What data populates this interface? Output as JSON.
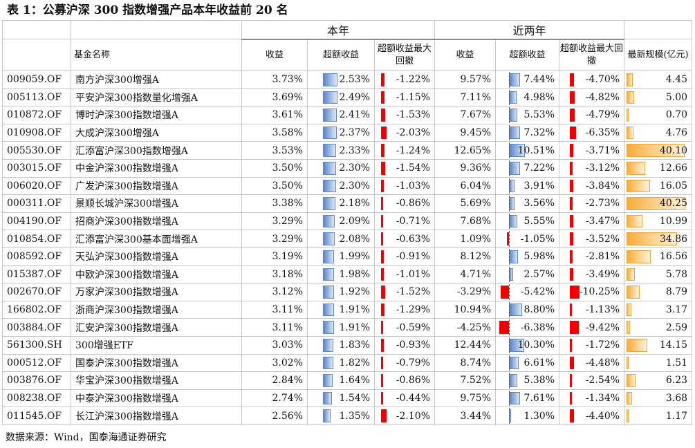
{
  "title": "表 1：公募沪深 300 指数增强产品本年收益前 20 名",
  "source": "数据来源：Wind，国泰海通证券研究",
  "group_headers": {
    "this_year": "本年",
    "two_years": "近两年"
  },
  "columns": {
    "fund_name": "基金名称",
    "ret": "收益",
    "excess": "超额收益",
    "mdd": "超额收益最大回撤",
    "ret2": "收益",
    "excess2": "超额收益",
    "mdd2": "超额收益最大回撤",
    "scale": "最新规模(亿元)"
  },
  "colors": {
    "blue": "#5b86c8",
    "red": "#f00000",
    "orange": "#f6ad3b",
    "border": "#c4c4c4"
  },
  "rows": [
    {
      "code": "009059.OF",
      "name": "南方沪深300增强A",
      "ret": "3.73%",
      "excess": "2.53%",
      "mdd": "-1.22%",
      "ret2": "9.57%",
      "excess2": "7.44%",
      "mdd2": "-4.70%",
      "scale": "4.45"
    },
    {
      "code": "005113.OF",
      "name": "平安沪深300指数量化增强A",
      "ret": "3.69%",
      "excess": "2.49%",
      "mdd": "-1.15%",
      "ret2": "7.11%",
      "excess2": "4.98%",
      "mdd2": "-4.82%",
      "scale": "5.00"
    },
    {
      "code": "010872.OF",
      "name": "博时沪深300指数增强A",
      "ret": "3.61%",
      "excess": "2.41%",
      "mdd": "-1.53%",
      "ret2": "7.67%",
      "excess2": "5.53%",
      "mdd2": "-4.79%",
      "scale": "0.70"
    },
    {
      "code": "010908.OF",
      "name": "大成沪深300增强A",
      "ret": "3.58%",
      "excess": "2.37%",
      "mdd": "-2.03%",
      "ret2": "9.45%",
      "excess2": "7.32%",
      "mdd2": "-6.35%",
      "scale": "4.76"
    },
    {
      "code": "005530.OF",
      "name": "汇添富沪深300指数增强A",
      "ret": "3.53%",
      "excess": "2.33%",
      "mdd": "-1.24%",
      "ret2": "12.65%",
      "excess2": "10.51%",
      "mdd2": "-3.71%",
      "scale": "40.10"
    },
    {
      "code": "003015.OF",
      "name": "中金沪深300指数增强A",
      "ret": "3.50%",
      "excess": "2.30%",
      "mdd": "-1.54%",
      "ret2": "9.36%",
      "excess2": "7.22%",
      "mdd2": "-3.12%",
      "scale": "12.66"
    },
    {
      "code": "006020.OF",
      "name": "广发沪深300指数增强A",
      "ret": "3.50%",
      "excess": "2.30%",
      "mdd": "-1.03%",
      "ret2": "6.04%",
      "excess2": "3.91%",
      "mdd2": "-3.84%",
      "scale": "16.05"
    },
    {
      "code": "000311.OF",
      "name": "景顺长城沪深300增强A",
      "ret": "3.38%",
      "excess": "2.18%",
      "mdd": "-0.86%",
      "ret2": "5.69%",
      "excess2": "3.56%",
      "mdd2": "-2.73%",
      "scale": "40.25"
    },
    {
      "code": "004190.OF",
      "name": "招商沪深300指数增强A",
      "ret": "3.29%",
      "excess": "2.09%",
      "mdd": "-0.71%",
      "ret2": "7.68%",
      "excess2": "5.55%",
      "mdd2": "-3.47%",
      "scale": "10.99"
    },
    {
      "code": "010854.OF",
      "name": "汇添富沪深300基本面增强A",
      "ret": "3.29%",
      "excess": "2.08%",
      "mdd": "-0.63%",
      "ret2": "1.09%",
      "excess2": "-1.05%",
      "mdd2": "-3.52%",
      "scale": "34.86"
    },
    {
      "code": "008592.OF",
      "name": "天弘沪深300指数增强A",
      "ret": "3.19%",
      "excess": "1.99%",
      "mdd": "-0.91%",
      "ret2": "8.12%",
      "excess2": "5.98%",
      "mdd2": "-2.81%",
      "scale": "16.56"
    },
    {
      "code": "015387.OF",
      "name": "中欧沪深300指数增强A",
      "ret": "3.18%",
      "excess": "1.98%",
      "mdd": "-1.01%",
      "ret2": "4.71%",
      "excess2": "2.57%",
      "mdd2": "-3.49%",
      "scale": "5.78"
    },
    {
      "code": "002670.OF",
      "name": "万家沪深300指数增强A",
      "ret": "3.12%",
      "excess": "1.92%",
      "mdd": "-1.52%",
      "ret2": "-3.29%",
      "excess2": "-5.42%",
      "mdd2": "-10.25%",
      "scale": "8.79"
    },
    {
      "code": "166802.OF",
      "name": "浙商沪深300指数增强A",
      "ret": "3.11%",
      "excess": "1.91%",
      "mdd": "-1.29%",
      "ret2": "10.94%",
      "excess2": "8.80%",
      "mdd2": "-1.13%",
      "scale": "3.17"
    },
    {
      "code": "003884.OF",
      "name": "汇安沪深300指数增强A",
      "ret": "3.11%",
      "excess": "1.91%",
      "mdd": "-0.59%",
      "ret2": "-4.25%",
      "excess2": "-6.38%",
      "mdd2": "-9.42%",
      "scale": "2.59"
    },
    {
      "code": "561300.SH",
      "name": "300增强ETF",
      "ret": "3.03%",
      "excess": "1.83%",
      "mdd": "-0.93%",
      "ret2": "12.44%",
      "excess2": "10.30%",
      "mdd2": "-1.72%",
      "scale": "14.15"
    },
    {
      "code": "000512.OF",
      "name": "国泰沪深300指数增强A",
      "ret": "3.02%",
      "excess": "1.82%",
      "mdd": "-0.79%",
      "ret2": "8.74%",
      "excess2": "6.61%",
      "mdd2": "-4.48%",
      "scale": "1.51"
    },
    {
      "code": "003876.OF",
      "name": "华宝沪深300指数增强A",
      "ret": "2.84%",
      "excess": "1.64%",
      "mdd": "-0.86%",
      "ret2": "7.52%",
      "excess2": "5.38%",
      "mdd2": "-2.54%",
      "scale": "6.23"
    },
    {
      "code": "008238.OF",
      "name": "中泰沪深300指数增强A",
      "ret": "2.74%",
      "excess": "1.54%",
      "mdd": "-0.44%",
      "ret2": "9.75%",
      "excess2": "7.61%",
      "mdd2": "-1.34%",
      "scale": "3.68"
    },
    {
      "code": "011545.OF",
      "name": "长江沪深300指数增强A",
      "ret": "2.56%",
      "excess": "1.35%",
      "mdd": "-2.10%",
      "ret2": "3.44%",
      "excess2": "1.30%",
      "mdd2": "-4.40%",
      "scale": "1.17"
    }
  ]
}
